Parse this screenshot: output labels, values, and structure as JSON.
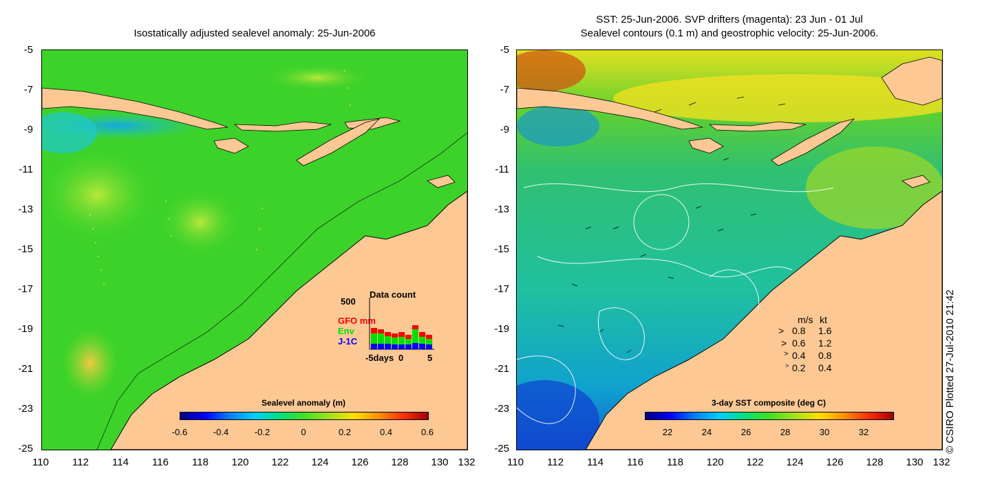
{
  "left_panel": {
    "title": "Isostatically adjusted sealevel anomaly: 25-Jun-2006",
    "colorbar": {
      "title": "Sealevel anomaly (m)",
      "ticks": [
        "-0.6",
        "-0.4",
        "-0.2",
        "0",
        "0.2",
        "0.4",
        "0.6"
      ]
    },
    "data_count": {
      "title": "Data count",
      "ymax_label": "500",
      "series": [
        {
          "name": "GFO mm",
          "color": "#ff0000"
        },
        {
          "name": "Env",
          "color": "#00e000"
        },
        {
          "name": "J-1C",
          "color": "#0000ff"
        }
      ],
      "x_ticks": [
        "-5days",
        "0",
        "5"
      ]
    }
  },
  "right_panel": {
    "title_line1": "SST: 25-Jun-2006. SVP drifters (magenta): 23 Jun - 01 Jul",
    "title_line2": "Sealevel contours (0.1 m) and geostrophic velocity: 25-Jun-2006.",
    "colorbar": {
      "title": "3-day SST composite (deg C)",
      "ticks": [
        "22",
        "24",
        "26",
        "28",
        "30",
        "32"
      ]
    },
    "velocity_legend": {
      "header_ms": "m/s",
      "header_kt": "kt",
      "rows": [
        {
          "ms": "0.8",
          "kt": "1.6"
        },
        {
          "ms": "0.6",
          "kt": "1.2"
        },
        {
          "ms": "0.4",
          "kt": "0.8"
        },
        {
          "ms": "0.2",
          "kt": "0.4"
        }
      ]
    }
  },
  "axes": {
    "y_labels": [
      "-5",
      "-7",
      "-9",
      "-11",
      "-13",
      "-15",
      "-17",
      "-19",
      "-21",
      "-23",
      "-25"
    ],
    "x_labels": [
      "110",
      "112",
      "114",
      "116",
      "118",
      "120",
      "122",
      "124",
      "126",
      "128",
      "130",
      "132"
    ]
  },
  "copyright": "© CSIRO Plotted 27-Jul-2010 21:42",
  "colors": {
    "land": "#fdc894",
    "ocean_green": "#3cd22a",
    "ocean_cyan": "#1fc8d0"
  }
}
